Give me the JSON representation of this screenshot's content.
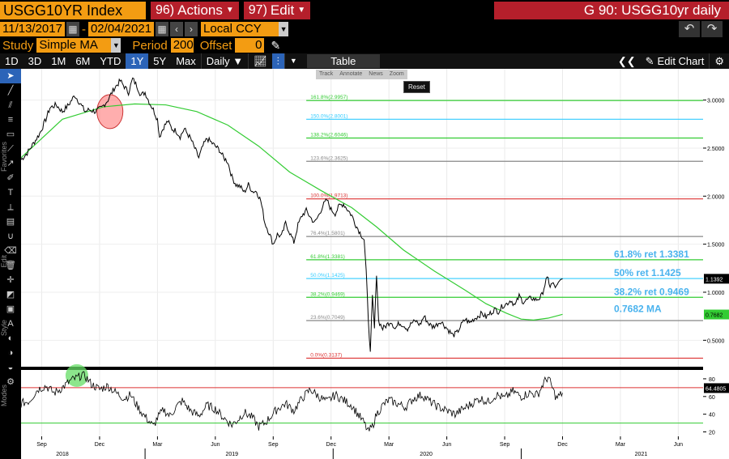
{
  "header": {
    "ticker": "USGG10YR Index",
    "actions_num": "96)",
    "actions_label": "Actions",
    "edit_num": "97)",
    "edit_label": "Edit",
    "title": "G 90: USGG10yr daily"
  },
  "dates": {
    "start": "11/13/2017",
    "separator": "-",
    "end": "02/04/2021",
    "currency": "Local CCY"
  },
  "study": {
    "study_label": "Study",
    "study_value": "Simple MA",
    "period_label": "Period",
    "period_value": "200",
    "offset_label": "Offset",
    "offset_value": "0"
  },
  "toolbar": {
    "ranges": [
      "1D",
      "3D",
      "1M",
      "6M",
      "YTD",
      "1Y",
      "5Y",
      "Max"
    ],
    "active_range": "1Y",
    "frequency": "Daily ▼",
    "table_label": "Table",
    "edit_chart_label": "Edit Chart"
  },
  "chart_tools": {
    "track": "Track",
    "annotate": "Annotate",
    "news": "News",
    "zoom": "Zoom",
    "reset": "Reset"
  },
  "side_labels": {
    "favorites": "Favorites",
    "edit": "Edit",
    "style": "Style",
    "modes": "Modes"
  },
  "chart_data": {
    "type": "line",
    "series": [
      {
        "name": "USGG10YR",
        "color": "#000000"
      },
      {
        "name": "200 MA",
        "color": "#33cc33"
      }
    ],
    "ylim": [
      0.25,
      3.3
    ],
    "yticks": [
      "3.0000",
      "2.5000",
      "2.0000",
      "1.5000",
      "1.0000",
      "0.5000"
    ],
    "last_price_tag": "1.1392",
    "ma_tag": "0.7682",
    "fib_levels": [
      {
        "label": "161.8%(2.9957)",
        "value": 2.9957,
        "color": "#33cc33"
      },
      {
        "label": "150.0%(2.8001)",
        "value": 2.8001,
        "color": "#33ccff"
      },
      {
        "label": "138.2%(2.6046)",
        "value": 2.6046,
        "color": "#33cc33"
      },
      {
        "label": "123.6%(2.3625)",
        "value": 2.3625,
        "color": "#888888"
      },
      {
        "label": "100.0%(1.9713)",
        "value": 1.9713,
        "color": "#dd3333"
      },
      {
        "label": "76.4%(1.5801)",
        "value": 1.5801,
        "color": "#888888"
      },
      {
        "label": "61.8%(1.3381)",
        "value": 1.3381,
        "color": "#33cc33"
      },
      {
        "label": "50.0%(1.1425)",
        "value": 1.1425,
        "color": "#33ccff"
      },
      {
        "label": "38.2%(0.9469)",
        "value": 0.9469,
        "color": "#33cc33"
      },
      {
        "label": "23.6%(0.7049)",
        "value": 0.7049,
        "color": "#888888"
      },
      {
        "label": "0.0%(0.3137)",
        "value": 0.3137,
        "color": "#dd3333"
      }
    ],
    "annotations": [
      {
        "text": "61.8% ret 1.3381",
        "value": 1.3381
      },
      {
        "text": "50% ret 1.1425",
        "value": 1.1425
      },
      {
        "text": "38.2% ret 0.9469",
        "value": 0.9469
      },
      {
        "text": "0.7682 MA",
        "value": 0.7682
      }
    ],
    "price_points": [
      [
        0,
        2.38
      ],
      [
        3,
        2.45
      ],
      [
        6,
        2.55
      ],
      [
        9,
        2.65
      ],
      [
        12,
        2.8
      ],
      [
        14,
        2.92
      ],
      [
        17,
        2.95
      ],
      [
        20,
        2.88
      ],
      [
        23,
        2.95
      ],
      [
        26,
        3.05
      ],
      [
        29,
        2.95
      ],
      [
        31,
        2.88
      ],
      [
        33,
        2.9
      ],
      [
        36,
        2.88
      ],
      [
        39,
        2.92
      ],
      [
        42,
        3.0
      ],
      [
        45,
        3.12
      ],
      [
        48,
        3.2
      ],
      [
        50,
        3.14
      ],
      [
        52,
        3.08
      ],
      [
        54,
        3.22
      ],
      [
        56,
        3.15
      ],
      [
        58,
        3.05
      ],
      [
        60,
        3.08
      ],
      [
        62,
        2.98
      ],
      [
        64,
        2.9
      ],
      [
        66,
        2.8
      ],
      [
        67,
        2.62
      ],
      [
        69,
        2.72
      ],
      [
        71,
        2.78
      ],
      [
        73,
        2.7
      ],
      [
        75,
        2.68
      ],
      [
        77,
        2.62
      ],
      [
        79,
        2.7
      ],
      [
        82,
        2.6
      ],
      [
        84,
        2.5
      ],
      [
        86,
        2.4
      ],
      [
        88,
        2.52
      ],
      [
        90,
        2.6
      ],
      [
        92,
        2.56
      ],
      [
        94,
        2.52
      ],
      [
        96,
        2.48
      ],
      [
        98,
        2.4
      ],
      [
        100,
        2.36
      ],
      [
        102,
        2.2
      ],
      [
        104,
        2.12
      ],
      [
        106,
        2.1
      ],
      [
        108,
        2.04
      ],
      [
        110,
        2.12
      ],
      [
        112,
        2.05
      ],
      [
        114,
        2.05
      ],
      [
        116,
        1.95
      ],
      [
        118,
        1.72
      ],
      [
        120,
        1.62
      ],
      [
        122,
        1.5
      ],
      [
        124,
        1.6
      ],
      [
        126,
        1.58
      ],
      [
        128,
        1.72
      ],
      [
        130,
        1.62
      ],
      [
        132,
        1.52
      ],
      [
        134,
        1.7
      ],
      [
        136,
        1.8
      ],
      [
        138,
        1.85
      ],
      [
        140,
        1.78
      ],
      [
        142,
        1.72
      ],
      [
        144,
        1.8
      ],
      [
        146,
        1.9
      ],
      [
        148,
        1.96
      ],
      [
        150,
        1.86
      ],
      [
        152,
        1.82
      ],
      [
        154,
        1.9
      ],
      [
        156,
        1.92
      ],
      [
        158,
        1.86
      ],
      [
        160,
        1.8
      ],
      [
        162,
        1.7
      ],
      [
        164,
        1.62
      ],
      [
        166,
        1.55
      ],
      [
        167,
        1.2
      ],
      [
        168,
        0.74
      ],
      [
        169,
        0.36
      ],
      [
        170,
        0.95
      ],
      [
        171,
        0.62
      ],
      [
        172,
        1.2
      ],
      [
        173,
        0.7
      ],
      [
        175,
        0.62
      ],
      [
        177,
        0.66
      ],
      [
        179,
        0.7
      ],
      [
        181,
        0.62
      ],
      [
        183,
        0.68
      ],
      [
        185,
        0.66
      ],
      [
        187,
        0.62
      ],
      [
        189,
        0.68
      ],
      [
        191,
        0.7
      ],
      [
        193,
        0.66
      ],
      [
        195,
        0.75
      ],
      [
        197,
        0.68
      ],
      [
        199,
        0.64
      ],
      [
        201,
        0.66
      ],
      [
        203,
        0.7
      ],
      [
        205,
        0.65
      ],
      [
        207,
        0.6
      ],
      [
        209,
        0.55
      ],
      [
        211,
        0.58
      ],
      [
        213,
        0.66
      ],
      [
        215,
        0.72
      ],
      [
        217,
        0.68
      ],
      [
        219,
        0.72
      ],
      [
        221,
        0.75
      ],
      [
        223,
        0.78
      ],
      [
        225,
        0.74
      ],
      [
        227,
        0.78
      ],
      [
        229,
        0.82
      ],
      [
        231,
        0.8
      ],
      [
        233,
        0.86
      ],
      [
        235,
        0.88
      ],
      [
        237,
        0.92
      ],
      [
        239,
        0.86
      ],
      [
        241,
        0.96
      ],
      [
        243,
        0.9
      ],
      [
        245,
        0.92
      ],
      [
        247,
        0.94
      ],
      [
        249,
        0.92
      ],
      [
        251,
        0.94
      ],
      [
        252,
        0.97
      ],
      [
        254,
        1.12
      ],
      [
        255,
        1.14
      ],
      [
        256,
        1.06
      ],
      [
        257,
        1.09
      ],
      [
        259,
        1.05
      ],
      [
        261,
        1.12
      ],
      [
        262,
        1.14
      ]
    ],
    "ma_points": [
      [
        0,
        2.4
      ],
      [
        20,
        2.8
      ],
      [
        40,
        2.93
      ],
      [
        55,
        2.96
      ],
      [
        70,
        2.95
      ],
      [
        85,
        2.88
      ],
      [
        100,
        2.74
      ],
      [
        115,
        2.52
      ],
      [
        130,
        2.25
      ],
      [
        145,
        2.06
      ],
      [
        160,
        1.88
      ],
      [
        172,
        1.68
      ],
      [
        185,
        1.44
      ],
      [
        200,
        1.22
      ],
      [
        215,
        1.02
      ],
      [
        225,
        0.88
      ],
      [
        235,
        0.78
      ],
      [
        242,
        0.72
      ],
      [
        248,
        0.71
      ],
      [
        255,
        0.73
      ],
      [
        262,
        0.77
      ]
    ],
    "rsi_ylim": [
      15,
      90
    ],
    "rsi_tag": "64.4805",
    "rsi_yticks": [
      "80",
      "60",
      "40",
      "20"
    ],
    "rsi_levels": [
      {
        "value": 70,
        "color": "#dd3333"
      },
      {
        "value": 30,
        "color": "#33cc33"
      }
    ],
    "rsi_points": [
      [
        0,
        52
      ],
      [
        4,
        55
      ],
      [
        8,
        68
      ],
      [
        12,
        72
      ],
      [
        16,
        64
      ],
      [
        20,
        70
      ],
      [
        24,
        78
      ],
      [
        28,
        82
      ],
      [
        30,
        86
      ],
      [
        32,
        80
      ],
      [
        34,
        74
      ],
      [
        38,
        68
      ],
      [
        42,
        72
      ],
      [
        46,
        64
      ],
      [
        50,
        58
      ],
      [
        53,
        62
      ],
      [
        56,
        50
      ],
      [
        59,
        40
      ],
      [
        62,
        32
      ],
      [
        64,
        26
      ],
      [
        66,
        36
      ],
      [
        69,
        45
      ],
      [
        72,
        38
      ],
      [
        75,
        48
      ],
      [
        78,
        55
      ],
      [
        82,
        44
      ],
      [
        86,
        38
      ],
      [
        90,
        50
      ],
      [
        94,
        46
      ],
      [
        98,
        36
      ],
      [
        102,
        28
      ],
      [
        105,
        34
      ],
      [
        108,
        42
      ],
      [
        112,
        36
      ],
      [
        115,
        26
      ],
      [
        118,
        30
      ],
      [
        121,
        38
      ],
      [
        124,
        46
      ],
      [
        128,
        52
      ],
      [
        132,
        44
      ],
      [
        136,
        58
      ],
      [
        140,
        68
      ],
      [
        144,
        60
      ],
      [
        148,
        54
      ],
      [
        152,
        62
      ],
      [
        156,
        56
      ],
      [
        160,
        50
      ],
      [
        163,
        40
      ],
      [
        166,
        30
      ],
      [
        168,
        20
      ],
      [
        170,
        26
      ],
      [
        172,
        40
      ],
      [
        175,
        50
      ],
      [
        178,
        56
      ],
      [
        182,
        52
      ],
      [
        186,
        48
      ],
      [
        190,
        58
      ],
      [
        194,
        62
      ],
      [
        198,
        54
      ],
      [
        202,
        48
      ],
      [
        206,
        44
      ],
      [
        210,
        40
      ],
      [
        214,
        46
      ],
      [
        218,
        52
      ],
      [
        222,
        58
      ],
      [
        226,
        54
      ],
      [
        230,
        62
      ],
      [
        234,
        58
      ],
      [
        238,
        66
      ],
      [
        242,
        60
      ],
      [
        246,
        64
      ],
      [
        250,
        62
      ],
      [
        253,
        76
      ],
      [
        255,
        82
      ],
      [
        257,
        70
      ],
      [
        259,
        58
      ],
      [
        262,
        64
      ]
    ],
    "x_months": [
      {
        "label": "Sep",
        "t": 10
      },
      {
        "label": "Dec",
        "t": 38
      },
      {
        "label": "Mar",
        "t": 66
      },
      {
        "label": "Jun",
        "t": 94
      },
      {
        "label": "Sep",
        "t": 122
      },
      {
        "label": "Dec",
        "t": 150
      },
      {
        "label": "Mar",
        "t": 178
      },
      {
        "label": "Jun",
        "t": 206
      },
      {
        "label": "Sep",
        "t": 234
      },
      {
        "label": "Dec",
        "t": 262
      },
      {
        "label": "Mar",
        "t": 290
      },
      {
        "label": "Jun",
        "t": 318
      }
    ],
    "x_years": [
      {
        "label": "2018",
        "t": 20
      },
      {
        "label": "2019",
        "t": 102
      },
      {
        "label": "2020",
        "t": 196
      },
      {
        "label": "2021",
        "t": 300
      }
    ],
    "highlights": [
      {
        "name": "top-highlight",
        "t": 43,
        "value": 2.88,
        "color": "#ff6b6b"
      },
      {
        "name": "rsi-highlight",
        "t": 27,
        "rsi": 80,
        "color": "#66dd66"
      }
    ]
  }
}
